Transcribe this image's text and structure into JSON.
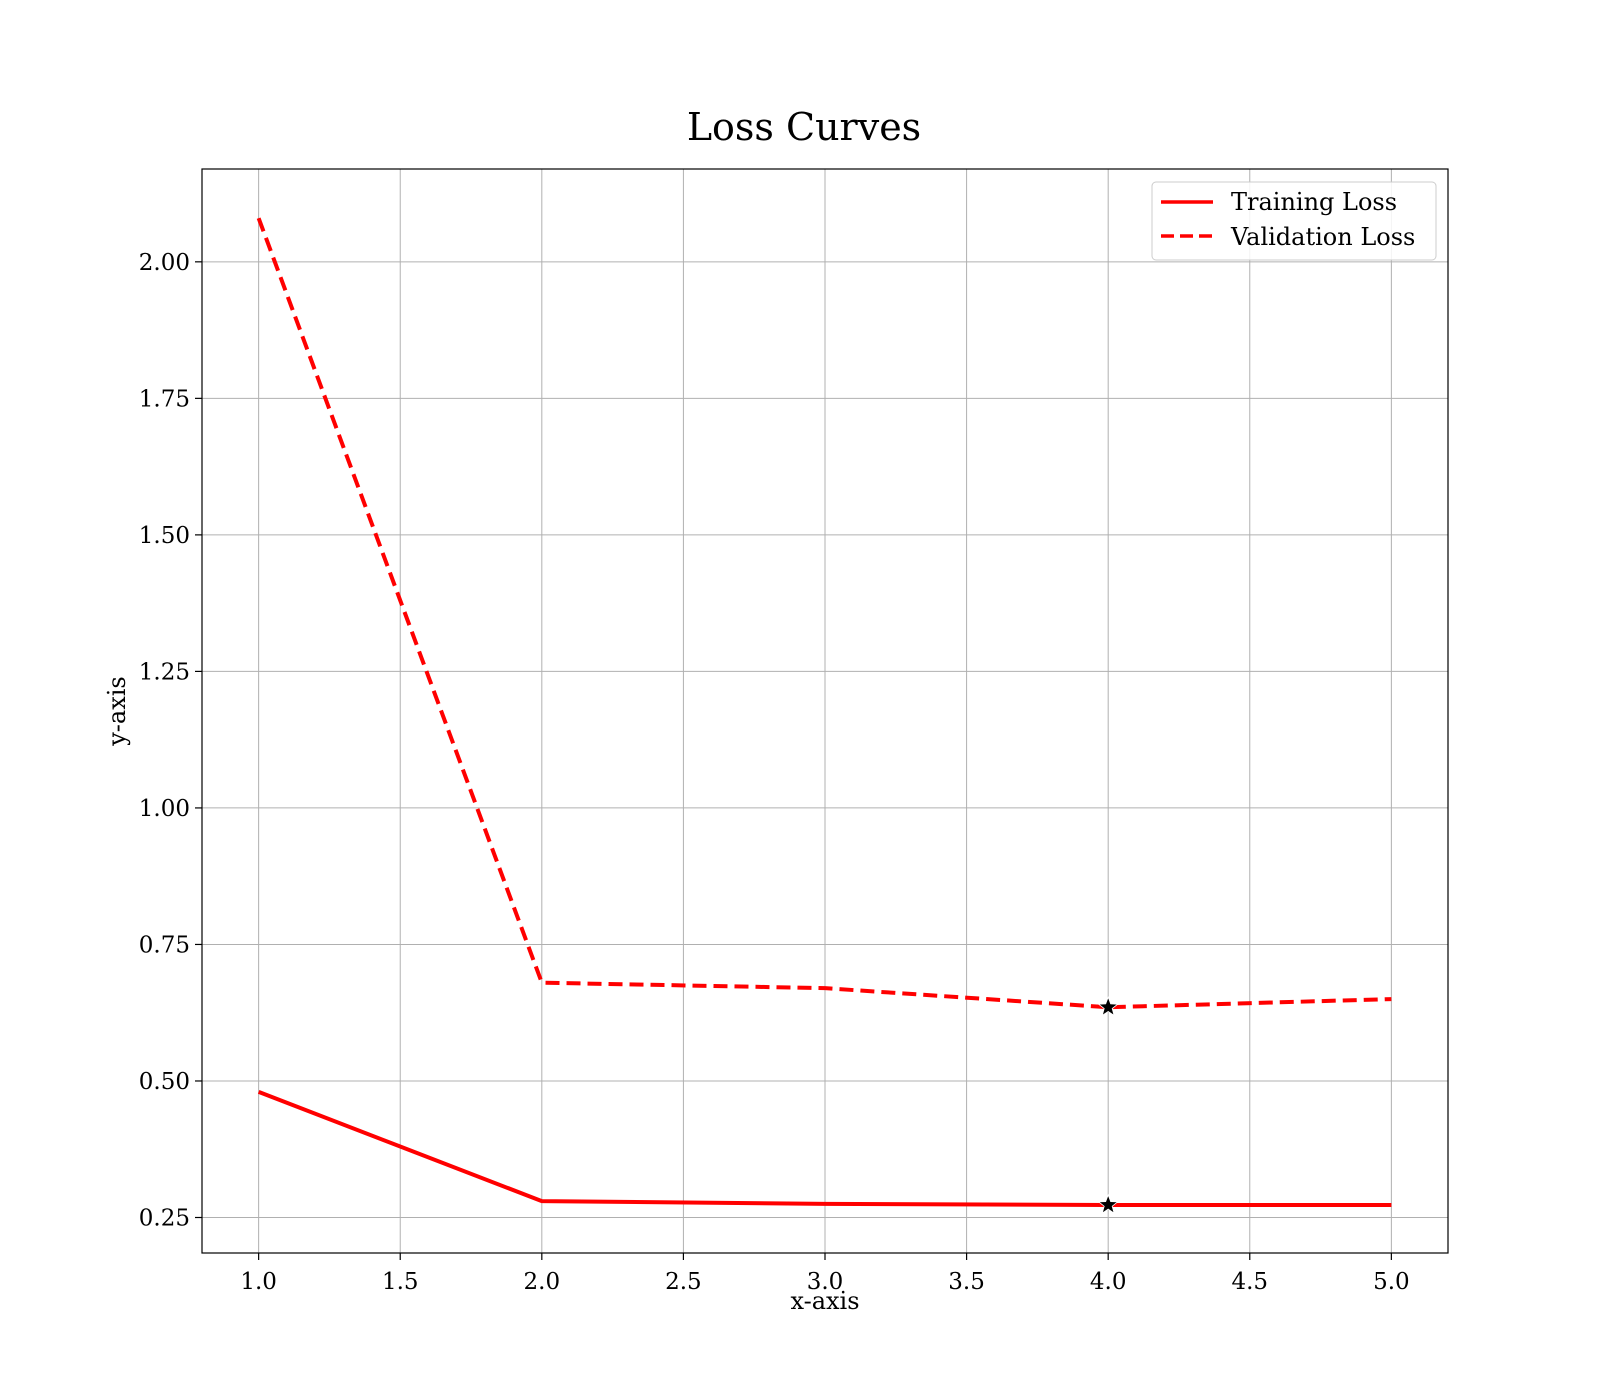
{
  "chart_data": {
    "type": "line",
    "title": "Loss Curves",
    "xlabel": "x-axis",
    "ylabel": "y-axis",
    "xlim": [
      0.8,
      5.2
    ],
    "ylim": [
      0.185,
      2.17
    ],
    "xticks": [
      1.0,
      1.5,
      2.0,
      2.5,
      3.0,
      3.5,
      4.0,
      4.5,
      5.0
    ],
    "xtick_labels": [
      "1.0",
      "1.5",
      "2.0",
      "2.5",
      "3.0",
      "3.5",
      "4.0",
      "4.5",
      "5.0"
    ],
    "yticks": [
      0.25,
      0.5,
      0.75,
      1.0,
      1.25,
      1.5,
      1.75,
      2.0
    ],
    "ytick_labels": [
      "0.25",
      "0.50",
      "0.75",
      "1.00",
      "1.25",
      "1.50",
      "1.75",
      "2.00"
    ],
    "grid": true,
    "legend_position": "top-right",
    "x": [
      1,
      2,
      3,
      4,
      5
    ],
    "series": [
      {
        "name": "Training Loss",
        "values": [
          0.48,
          0.28,
          0.275,
          0.273,
          0.273
        ],
        "line_style": "solid",
        "color": "#ff0000"
      },
      {
        "name": "Validation Loss",
        "values": [
          2.08,
          0.68,
          0.67,
          0.635,
          0.65
        ],
        "line_style": "dashed",
        "color": "#ff0000"
      }
    ],
    "markers": [
      {
        "series": "Training Loss",
        "x": 4,
        "y": 0.273,
        "shape": "star",
        "color": "#000000"
      },
      {
        "series": "Validation Loss",
        "x": 4,
        "y": 0.635,
        "shape": "star",
        "color": "#000000"
      }
    ]
  }
}
